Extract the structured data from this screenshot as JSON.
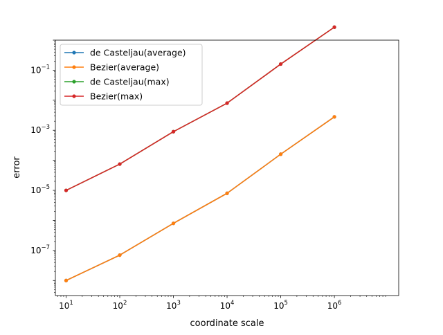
{
  "chart_data": {
    "type": "line",
    "title": "",
    "xlabel": "coordinate scale",
    "ylabel": "error",
    "xscale": "log",
    "yscale": "log",
    "xlim": [
      6.31,
      15800000
    ],
    "ylim": [
      3.16e-09,
      1.0
    ],
    "xticks": [
      {
        "value": 10,
        "base": "10",
        "exp": "1"
      },
      {
        "value": 100,
        "base": "10",
        "exp": "2"
      },
      {
        "value": 1000,
        "base": "10",
        "exp": "3"
      },
      {
        "value": 10000,
        "base": "10",
        "exp": "4"
      },
      {
        "value": 100000,
        "base": "10",
        "exp": "5"
      },
      {
        "value": 1000000,
        "base": "10",
        "exp": "6"
      }
    ],
    "yticks": [
      {
        "value": 1e-07,
        "base": "10",
        "exp": "−7"
      },
      {
        "value": 1e-05,
        "base": "10",
        "exp": "−5"
      },
      {
        "value": 0.001,
        "base": "10",
        "exp": "−3"
      },
      {
        "value": 0.1,
        "base": "10",
        "exp": "−1"
      }
    ],
    "legend_position": "upper-left",
    "grid": false,
    "x": [
      10,
      100,
      1000,
      10000,
      100000,
      1000000
    ],
    "series": [
      {
        "name": "de Casteljau(average)",
        "color": "#1f77b4",
        "values": [
          1e-08,
          7e-08,
          8e-07,
          8e-06,
          0.00016,
          0.0028
        ]
      },
      {
        "name": "Bezier(average)",
        "color": "#ff7f0e",
        "values": [
          1e-08,
          7e-08,
          8e-07,
          8e-06,
          0.00016,
          0.0028
        ]
      },
      {
        "name": "de Casteljau(max)",
        "color": "#2ca02c",
        "values": [
          1e-05,
          7.5e-05,
          0.0009,
          0.008,
          0.16,
          2.7
        ]
      },
      {
        "name": "Bezier(max)",
        "color": "#d62728",
        "values": [
          1e-05,
          7.5e-05,
          0.0009,
          0.008,
          0.16,
          2.7
        ]
      }
    ]
  }
}
